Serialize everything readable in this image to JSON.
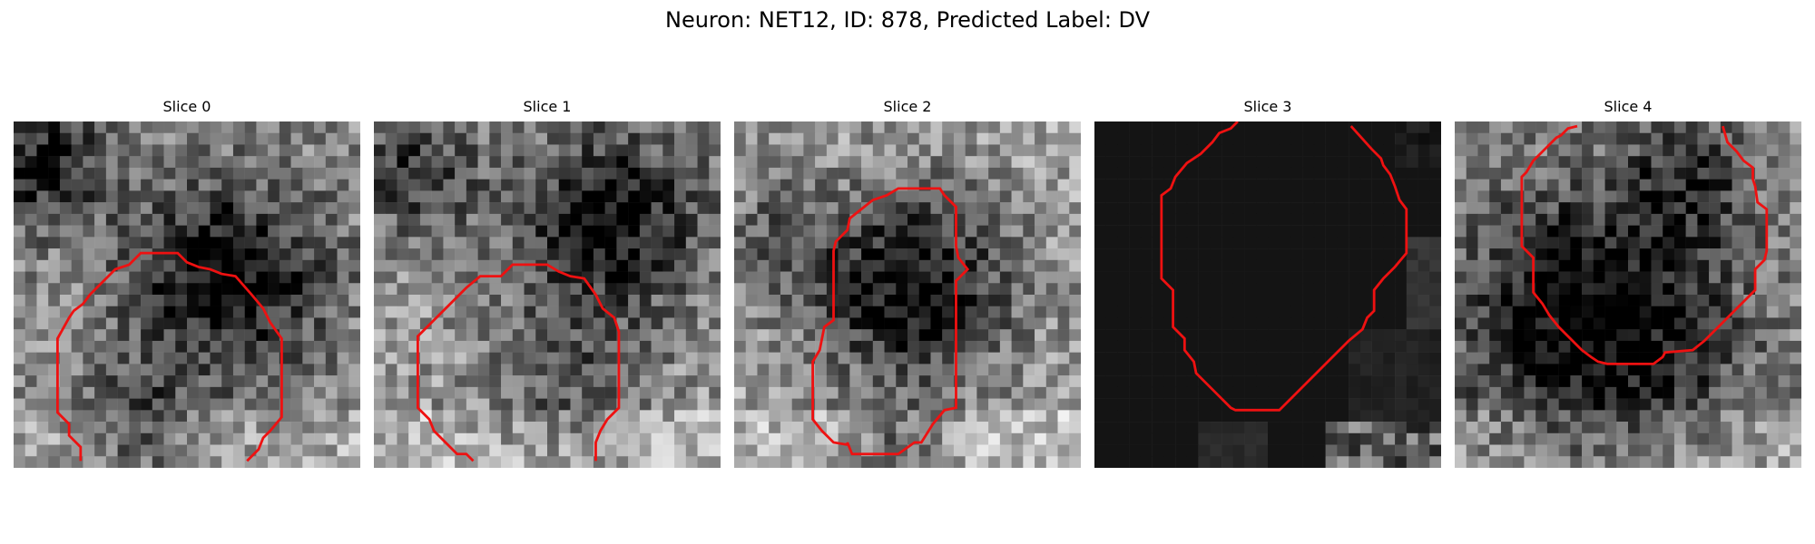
{
  "figure": {
    "title": "Neuron: NET12, ID: 878, Predicted Label: DV"
  },
  "panels": [
    {
      "title": "Slice 0",
      "seed": 11,
      "base": 0.55,
      "dark_blob": "right",
      "image": "grayscale microscopy slice, mixed texture"
    },
    {
      "title": "Slice 1",
      "seed": 23,
      "base": 0.6,
      "dark_blob": "top-right",
      "image": "grayscale microscopy slice, mixed texture"
    },
    {
      "title": "Slice 2",
      "seed": 37,
      "base": 0.62,
      "dark_blob": "center-band",
      "image": "grayscale microscopy slice, mixed texture"
    },
    {
      "title": "Slice 3",
      "seed": 41,
      "base": 0.08,
      "dark_blob": "none",
      "image": "near-black slice with faint bright patches at bottom-right"
    },
    {
      "title": "Slice 4",
      "seed": 53,
      "base": 0.6,
      "dark_blob": "center",
      "image": "grayscale microscopy slice, dark cell body center"
    }
  ],
  "colors": {
    "contour": "#ee1111",
    "background": "#ffffff"
  }
}
